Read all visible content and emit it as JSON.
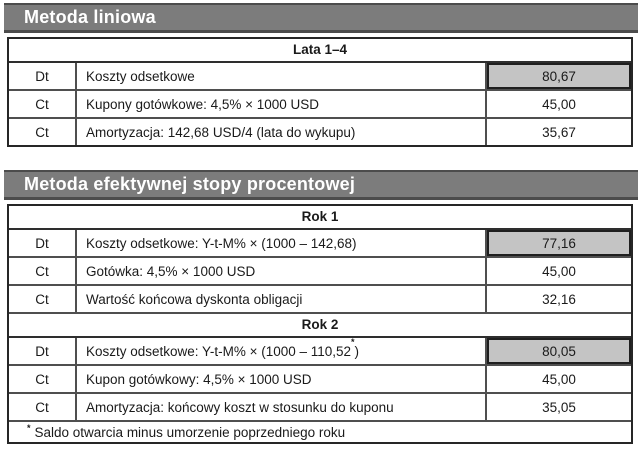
{
  "colors": {
    "title_bar_bg": "#7c7c7c",
    "title_bar_border": "#4c4c4c",
    "highlight_bg": "#c4c4c4",
    "outer_border": "#262626",
    "inner_border": "#4f4f4f"
  },
  "section1": {
    "title": "Metoda liniowa",
    "table": {
      "header": "Lata 1–4",
      "rows": [
        {
          "side": "Dt",
          "desc": "Koszty odsetkowe",
          "value": "80,67",
          "highlighted": true
        },
        {
          "side": "Ct",
          "desc": "Kupony gotówkowe: 4,5% × 1000 USD",
          "value": "45,00",
          "highlighted": false
        },
        {
          "side": "Ct",
          "desc": "Amortyzacja: 142,68 USD/4 (lata do wykupu)",
          "value": "35,67",
          "highlighted": false
        }
      ]
    }
  },
  "section2": {
    "title": "Metoda efektywnej stopy procentowej",
    "year1": {
      "header": "Rok 1",
      "rows": [
        {
          "side": "Dt",
          "desc": "Koszty odsetkowe: Y-t-M% × (1000 – 142,68)",
          "value": "77,16",
          "highlighted": true
        },
        {
          "side": "Ct",
          "desc": "Gotówka: 4,5% × 1000 USD",
          "value": "45,00",
          "highlighted": false
        },
        {
          "side": "Ct",
          "desc": "Wartość końcowa dyskonta obligacji",
          "value": "32,16",
          "highlighted": false
        }
      ]
    },
    "year2": {
      "header": "Rok 2",
      "rows": [
        {
          "side": "Dt",
          "desc_pre": "Koszty odsetkowe: Y-t-M% × (1000 – 110,52",
          "desc_sup": "*",
          "desc_post": ")",
          "value": "80,05",
          "highlighted": true
        },
        {
          "side": "Ct",
          "desc": "Kupon gotówkowy: 4,5% × 1000 USD",
          "value": "45,00",
          "highlighted": false
        },
        {
          "side": "Ct",
          "desc": "Amortyzacja: końcowy koszt w stosunku do kuponu",
          "value": "35,05",
          "highlighted": false
        }
      ]
    },
    "footnote": {
      "marker": "*",
      "text": "Saldo otwarcia minus umorzenie poprzedniego roku"
    }
  }
}
